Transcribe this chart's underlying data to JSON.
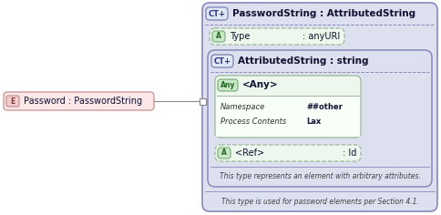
{
  "bg_color": "#ffffff",
  "outer_panel_color": "#dde0ef",
  "outer_panel_border": "#8888bb",
  "inner_panel_color": "#dde0ef",
  "inner_panel_border": "#8888bb",
  "attr_box_fill": "#edf7ed",
  "attr_box_border": "#99bb99",
  "any_box_fill": "#edf7ed",
  "any_box_border": "#99bb99",
  "any_inner_fill": "#f8fff8",
  "ct_badge_fill": "#dde8f5",
  "ct_badge_border": "#8888bb",
  "a_badge_fill": "#c8e8c8",
  "a_badge_border": "#77aa77",
  "any_badge_fill": "#c8e8c8",
  "any_badge_border": "#77aa77",
  "elem_fill": "#fce8e8",
  "elem_border": "#cc9999",
  "e_badge_fill": "#f5cccc",
  "e_badge_border": "#bb8888",
  "title_outer": "PasswordString : AttributedString",
  "title_inner": "AttributedString : string",
  "attr1_badge": "A",
  "attr1_name": "Type",
  "attr1_type": ": anyURI",
  "any_badge": "Any",
  "any_name": "<Any>",
  "ns_label": "Namespace",
  "ns_value": "##other",
  "pc_label": "Process Contents",
  "pc_value": "Lax",
  "attr2_badge": "A",
  "attr2_name": "<Ref>",
  "attr2_type": ": Id",
  "note_inner": "This type represents an element with arbitrary attributes.",
  "note_outer": "This type is used for password elements per Section 4.1.",
  "elem_badge": "E",
  "elem_name": "Password : PasswordString",
  "ct_badge": "CT+",
  "ct_badge2": "CT+"
}
